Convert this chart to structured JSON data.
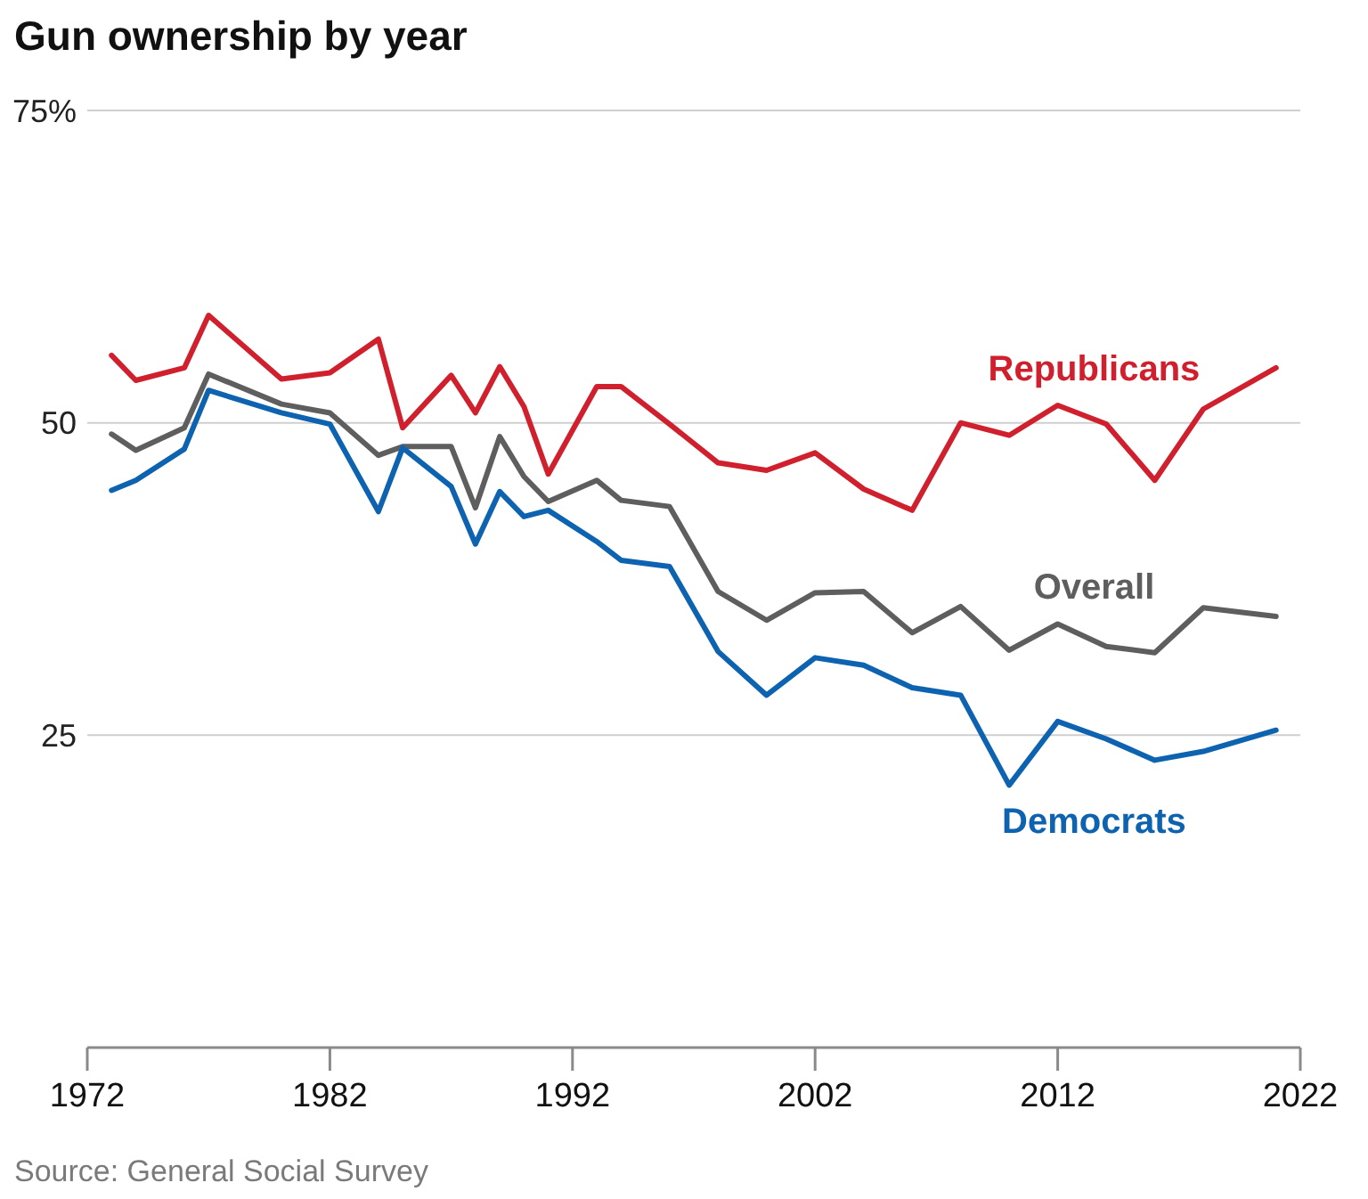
{
  "chart_data": {
    "type": "line",
    "title": "Gun ownership by year",
    "x": [
      1973,
      1974,
      1976,
      1977,
      1980,
      1982,
      1984,
      1985,
      1987,
      1988,
      1989,
      1990,
      1991,
      1993,
      1994,
      1996,
      1998,
      2000,
      2002,
      2004,
      2006,
      2008,
      2010,
      2012,
      2014,
      2016,
      2018,
      2021
    ],
    "series": [
      {
        "name": "Republicans",
        "color": "#d0202e",
        "values": [
          55.4,
          53.4,
          54.4,
          58.6,
          53.5,
          54.0,
          56.7,
          49.6,
          53.8,
          50.8,
          54.5,
          51.3,
          45.9,
          52.9,
          52.9,
          49.9,
          46.8,
          46.2,
          47.6,
          44.7,
          43.0,
          50.0,
          49.0,
          51.4,
          49.9,
          45.4,
          51.1,
          54.4
        ]
      },
      {
        "name": "Overall",
        "color": "#5e5e5e",
        "values": [
          49.1,
          47.8,
          49.6,
          53.9,
          51.5,
          50.8,
          47.4,
          48.1,
          48.1,
          43.2,
          48.9,
          45.7,
          43.7,
          45.4,
          43.8,
          43.3,
          36.5,
          34.2,
          36.4,
          36.5,
          33.2,
          35.3,
          31.8,
          33.9,
          32.1,
          31.6,
          35.2,
          34.5
        ]
      },
      {
        "name": "Democrats",
        "color": "#0d63b0",
        "values": [
          44.6,
          45.4,
          47.9,
          52.6,
          50.8,
          49.9,
          42.9,
          48.0,
          44.9,
          40.3,
          44.5,
          42.5,
          43.0,
          40.5,
          39.0,
          38.5,
          31.7,
          28.2,
          31.2,
          30.6,
          28.8,
          28.2,
          21.0,
          26.1,
          24.7,
          23.0,
          23.7,
          25.4
        ]
      }
    ],
    "xlim": [
      1972,
      2022
    ],
    "xticks": [
      1972,
      1982,
      1992,
      2002,
      2012,
      2022
    ],
    "ylim": [
      0,
      75
    ],
    "yticks": [
      25,
      50,
      {
        "value": 75,
        "label": "75%"
      }
    ],
    "grid": "y",
    "annotations": [
      "Source: General Social Survey"
    ]
  }
}
